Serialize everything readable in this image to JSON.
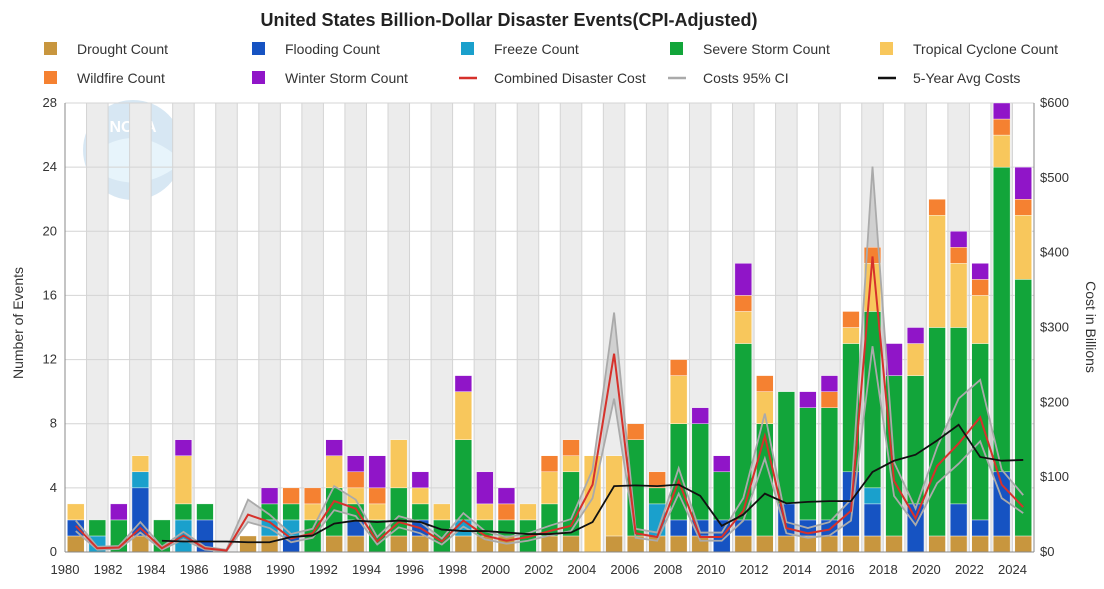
{
  "chart_data": {
    "type": "bar",
    "title": "United States Billion-Dollar Disaster Events(CPI-Adjusted)",
    "ylabel": "Number of Events",
    "y2label": "Cost in Billions",
    "ylim": [
      0,
      28
    ],
    "y2lim": [
      0,
      600
    ],
    "ytick_labels": [
      "0",
      "4",
      "8",
      "12",
      "16",
      "20",
      "24",
      "28"
    ],
    "y2tick_labels": [
      "$0",
      "$100",
      "$200",
      "$300",
      "$400",
      "$500",
      "$600"
    ],
    "grid": true,
    "legend_position": "top",
    "x": [
      1980,
      1981,
      1982,
      1983,
      1984,
      1985,
      1986,
      1987,
      1988,
      1989,
      1990,
      1991,
      1992,
      1993,
      1994,
      1995,
      1996,
      1997,
      1998,
      1999,
      2000,
      2001,
      2002,
      2003,
      2004,
      2005,
      2006,
      2007,
      2008,
      2009,
      2010,
      2011,
      2012,
      2013,
      2014,
      2015,
      2016,
      2017,
      2018,
      2019,
      2020,
      2021,
      2022,
      2023,
      2024
    ],
    "xtick_labels": [
      "1980",
      "1982",
      "1984",
      "1986",
      "1988",
      "1990",
      "1992",
      "1994",
      "1996",
      "1998",
      "2000",
      "2002",
      "2004",
      "2006",
      "2008",
      "2010",
      "2012",
      "2014",
      "2016",
      "2018",
      "2020",
      "2022",
      "2024"
    ],
    "series": [
      {
        "name": "Drought Count",
        "color": "#c8963e",
        "values": [
          1,
          0,
          0,
          1,
          0,
          0,
          0,
          0,
          1,
          1,
          0,
          0,
          1,
          1,
          0,
          1,
          1,
          0,
          1,
          1,
          1,
          0,
          1,
          1,
          0,
          1,
          1,
          1,
          1,
          1,
          0,
          1,
          1,
          1,
          1,
          1,
          1,
          1,
          1,
          0,
          1,
          1,
          1,
          1,
          1
        ]
      },
      {
        "name": "Flooding Count",
        "color": "#1653c2",
        "values": [
          1,
          0,
          0,
          3,
          0,
          0,
          2,
          0,
          0,
          0,
          1,
          0,
          0,
          1,
          0,
          0,
          1,
          0,
          0,
          0,
          0,
          0,
          0,
          0,
          0,
          0,
          0,
          0,
          1,
          1,
          2,
          1,
          0,
          2,
          1,
          1,
          4,
          2,
          0,
          3,
          0,
          2,
          1,
          4,
          0
        ]
      },
      {
        "name": "Freeze Count",
        "color": "#1aa0cc",
        "values": [
          0,
          1,
          0,
          1,
          0,
          2,
          0,
          0,
          0,
          1,
          1,
          0,
          0,
          0,
          0,
          0,
          0,
          0,
          1,
          0,
          0,
          0,
          0,
          0,
          0,
          0,
          0,
          2,
          0,
          0,
          0,
          0,
          0,
          0,
          0,
          0,
          0,
          1,
          0,
          0,
          0,
          0,
          0,
          0,
          0
        ]
      },
      {
        "name": "Severe Storm Count",
        "color": "#12a53a",
        "values": [
          0,
          1,
          2,
          0,
          2,
          1,
          1,
          0,
          0,
          1,
          1,
          2,
          3,
          1,
          2,
          3,
          1,
          2,
          5,
          1,
          1,
          2,
          2,
          4,
          0,
          0,
          6,
          1,
          6,
          6,
          3,
          11,
          7,
          7,
          7,
          7,
          8,
          11,
          10,
          8,
          13,
          11,
          11,
          19,
          16
        ]
      },
      {
        "name": "Tropical Cyclone Count",
        "color": "#f8c75c",
        "values": [
          1,
          0,
          0,
          1,
          0,
          3,
          0,
          0,
          0,
          0,
          0,
          1,
          2,
          1,
          1,
          3,
          1,
          1,
          3,
          1,
          0,
          1,
          2,
          1,
          6,
          5,
          0,
          0,
          3,
          0,
          0,
          2,
          2,
          0,
          0,
          0,
          1,
          3,
          0,
          2,
          7,
          4,
          3,
          2,
          4
        ]
      },
      {
        "name": "Wildfire Count",
        "color": "#f58131",
        "values": [
          0,
          0,
          0,
          0,
          0,
          0,
          0,
          0,
          0,
          0,
          1,
          1,
          0,
          1,
          1,
          0,
          0,
          0,
          0,
          0,
          1,
          0,
          1,
          1,
          0,
          0,
          1,
          1,
          1,
          0,
          0,
          1,
          1,
          0,
          0,
          1,
          1,
          1,
          0,
          0,
          1,
          1,
          1,
          1,
          1
        ]
      },
      {
        "name": "Winter Storm Count",
        "color": "#9015c8",
        "values": [
          0,
          0,
          1,
          0,
          0,
          1,
          0,
          0,
          0,
          1,
          0,
          0,
          1,
          1,
          2,
          0,
          1,
          0,
          1,
          2,
          1,
          0,
          0,
          0,
          0,
          0,
          0,
          0,
          0,
          1,
          1,
          2,
          0,
          0,
          1,
          1,
          0,
          0,
          2,
          1,
          0,
          1,
          1,
          1,
          2
        ]
      },
      {
        "name": "Combined Disaster Cost",
        "color": "#d6312b",
        "type": "line",
        "axis": "right",
        "values": [
          35,
          5,
          6,
          32,
          5,
          22,
          5,
          2,
          50,
          40,
          18,
          25,
          68,
          58,
          14,
          40,
          32,
          14,
          42,
          22,
          15,
          20,
          28,
          35,
          90,
          265,
          25,
          20,
          95,
          20,
          20,
          55,
          155,
          32,
          25,
          30,
          55,
          395,
          95,
          45,
          115,
          145,
          180,
          90,
          60
        ]
      },
      {
        "name": "Costs 95% CI",
        "color": "#aaaaaa",
        "type": "band",
        "axis": "right",
        "lower": [
          28,
          3,
          4,
          26,
          3,
          17,
          3,
          1,
          40,
          32,
          13,
          19,
          56,
          48,
          10,
          33,
          25,
          10,
          34,
          17,
          11,
          15,
          22,
          28,
          72,
          205,
          19,
          15,
          78,
          15,
          15,
          42,
          125,
          25,
          19,
          22,
          42,
          275,
          75,
          36,
          92,
          118,
          148,
          72,
          52
        ],
        "upper": [
          42,
          7,
          8,
          40,
          7,
          27,
          7,
          3,
          70,
          50,
          24,
          31,
          88,
          70,
          20,
          48,
          40,
          18,
          52,
          28,
          20,
          25,
          35,
          44,
          110,
          320,
          31,
          26,
          112,
          26,
          26,
          72,
          185,
          40,
          32,
          40,
          70,
          515,
          120,
          58,
          140,
          205,
          230,
          110,
          76
        ]
      },
      {
        "name": "5-Year Avg Costs",
        "color": "#111111",
        "type": "line",
        "axis": "right",
        "values": [
          null,
          null,
          null,
          null,
          15,
          14,
          14,
          14,
          13,
          13,
          20,
          22,
          38,
          42,
          40,
          42,
          40,
          30,
          28,
          28,
          26,
          24,
          24,
          26,
          40,
          88,
          89,
          88,
          90,
          75,
          35,
          50,
          78,
          65,
          67,
          68,
          68,
          107,
          122,
          130,
          149,
          170,
          127,
          122,
          123
        ]
      }
    ]
  }
}
